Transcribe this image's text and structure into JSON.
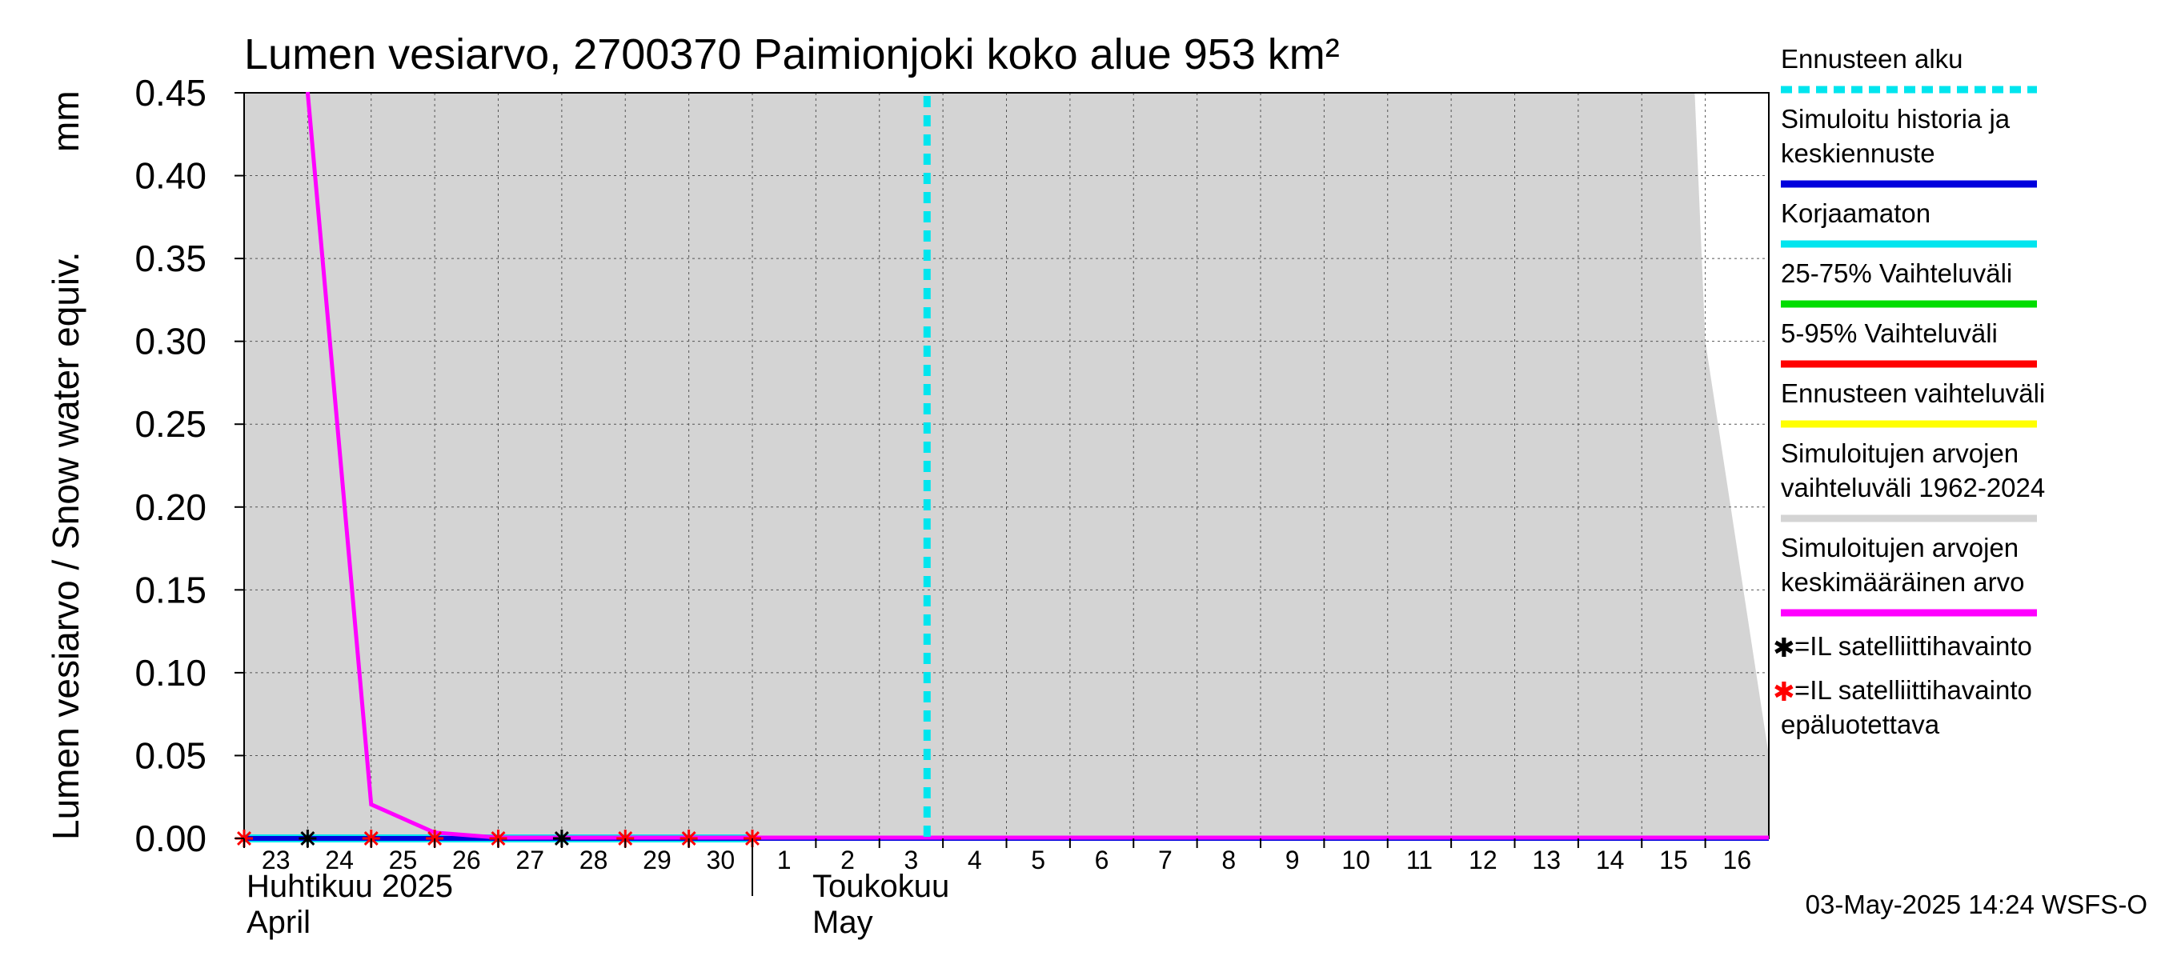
{
  "chart_data": {
    "type": "line",
    "title": "Lumen vesiarvo, 2700370 Paimionjoki koko alue 953 km²",
    "ylabel": "Lumen vesiarvo / Snow water equiv.",
    "yunit": "mm",
    "ylim": [
      0,
      0.45
    ],
    "yticks": [
      "0.00",
      "0.05",
      "0.10",
      "0.15",
      "0.20",
      "0.25",
      "0.30",
      "0.35",
      "0.40",
      "0.45"
    ],
    "x_start": "2025-04-23",
    "x_end": "2025-05-17",
    "xtick_labels": [
      "23",
      "24",
      "25",
      "26",
      "27",
      "28",
      "29",
      "30",
      "1",
      "2",
      "3",
      "4",
      "5",
      "6",
      "7",
      "8",
      "9",
      "10",
      "11",
      "12",
      "13",
      "14",
      "15",
      "16"
    ],
    "month_labels": [
      {
        "fi": "Huhtikuu  2025",
        "en": "April"
      },
      {
        "fi": "Toukokuu",
        "en": "May"
      }
    ],
    "grid": true,
    "forecast_start": "2025-05-03",
    "series": [
      {
        "name": "Simuloitujen arvojen vaihteluväli 1962-2024",
        "kind": "band",
        "color": "#d4d4d4",
        "x": [
          "2025-04-23",
          "2025-05-15 20:00",
          "2025-05-16",
          "2025-05-17"
        ],
        "upper": [
          0.45,
          0.45,
          0.3,
          0.05
        ],
        "lower": [
          0,
          0,
          0,
          0
        ]
      },
      {
        "name": "Simuloitujen arvojen keskimääräinen arvo",
        "kind": "line",
        "color": "#ff00ff",
        "x": [
          "2025-04-24",
          "2025-04-25",
          "2025-04-26",
          "2025-04-27",
          "2025-05-17"
        ],
        "y": [
          0.45,
          0.02,
          0.003,
          0.0,
          0.0
        ]
      },
      {
        "name": "Simuloitu historia ja keskiennuste",
        "kind": "line",
        "color": "#0000dd",
        "x": [
          "2025-04-23",
          "2025-05-17"
        ],
        "y": [
          0.0,
          0.0
        ]
      },
      {
        "name": "Korjaamaton",
        "kind": "line",
        "color": "#00e5ee",
        "x": [
          "2025-04-23",
          "2025-05-01"
        ],
        "y": [
          0.0,
          0.0
        ]
      }
    ],
    "observations": [
      {
        "name": "=IL satelliittihavainto",
        "color": "#000000",
        "x": [
          "2025-04-24",
          "2025-04-28"
        ],
        "y": [
          0,
          0
        ]
      },
      {
        "name": "=IL satelliittihavainto epäluotettava",
        "color": "#ff0000",
        "x": [
          "2025-04-23",
          "2025-04-25",
          "2025-04-26",
          "2025-04-27",
          "2025-04-29",
          "2025-04-30",
          "2025-05-01"
        ],
        "y": [
          0,
          0,
          0,
          0,
          0,
          0,
          0
        ]
      }
    ]
  },
  "legend": {
    "entries": [
      {
        "lines": [
          "Ennusteen alku"
        ],
        "color": "#00e5ee",
        "style": "dashed"
      },
      {
        "lines": [
          "Simuloitu historia ja",
          "keskiennuste"
        ],
        "color": "#0000dd",
        "style": "solid"
      },
      {
        "lines": [
          "Korjaamaton"
        ],
        "color": "#00e5ee",
        "style": "solid"
      },
      {
        "lines": [
          "25-75% Vaihteluväli"
        ],
        "color": "#00dd00",
        "style": "solid"
      },
      {
        "lines": [
          "5-95% Vaihteluväli"
        ],
        "color": "#ff0000",
        "style": "solid"
      },
      {
        "lines": [
          "Ennusteen vaihteluväli"
        ],
        "color": "#ffff00",
        "style": "solid"
      },
      {
        "lines": [
          "Simuloitujen arvojen",
          "vaihteluväli 1962-2024"
        ],
        "color": "#d4d4d4",
        "style": "solid"
      },
      {
        "lines": [
          "Simuloitujen arvojen",
          "keskimääräinen arvo"
        ],
        "color": "#ff00ff",
        "style": "solid"
      }
    ],
    "markers": [
      {
        "symbol": "✱",
        "color": "#000000",
        "lines": [
          "=IL satelliittihavainto"
        ]
      },
      {
        "symbol": "✱",
        "color": "#ff0000",
        "lines": [
          "=IL satelliittihavainto",
          "epäluotettava"
        ]
      }
    ]
  },
  "footer": "03-May-2025 14:24 WSFS-O"
}
